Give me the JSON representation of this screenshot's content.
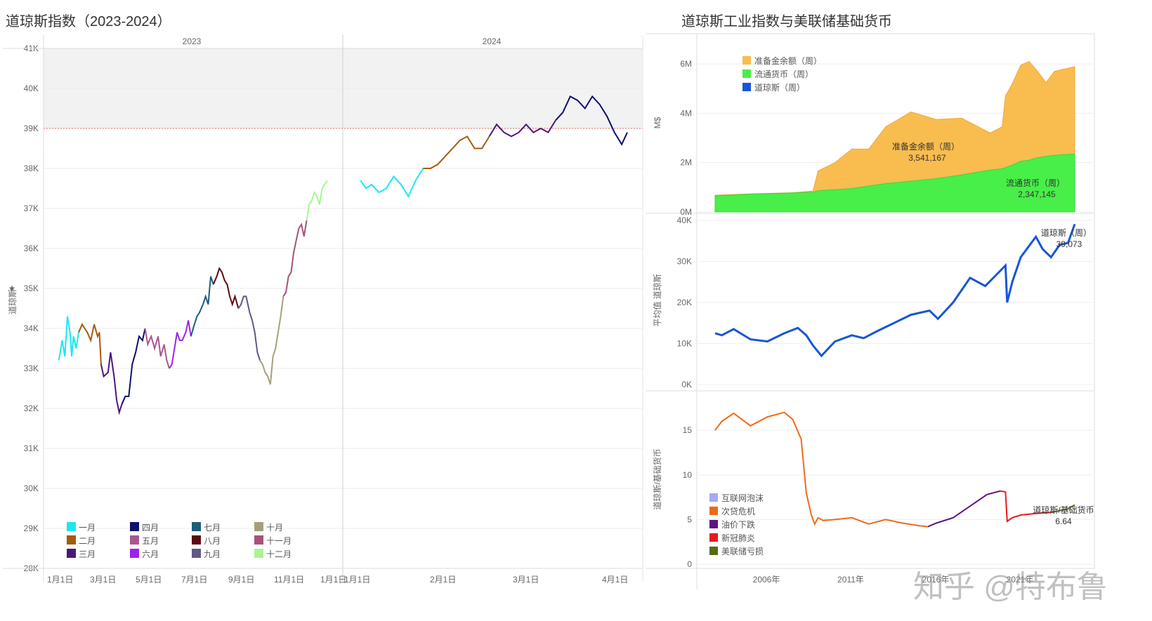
{
  "left_title": "道琼斯指数（2023-2024）",
  "right_title": "道琼斯工业指数与美联储基础货币",
  "watermark": "知乎 @特布鲁",
  "colors": {
    "months": [
      "#19e8f2",
      "#a35b0e",
      "#4b167a",
      "#0f0f6e",
      "#a9578f",
      "#a020f0",
      "#1a5f7a",
      "#5c0a14",
      "#5d5a88",
      "#a5a07c",
      "#a8507a",
      "#a9f58f"
    ],
    "reserve": "#f9bc4f",
    "currency": "#48ef48",
    "dow": "#1556d6",
    "eras": [
      "#a8a8f5",
      "#ee6a1b",
      "#5d1485",
      "#e6191f",
      "#556b12"
    ],
    "refline": "#e06060"
  },
  "chart_data": [
    {
      "type": "line",
      "title": "道琼斯指数（2023-2024）",
      "ylabel": "道琼斯",
      "ylim": [
        28000,
        41000
      ],
      "y_ticks": [
        "28K",
        "29K",
        "30K",
        "31K",
        "32K",
        "33K",
        "34K",
        "35K",
        "36K",
        "37K",
        "38K",
        "39K",
        "40K",
        "41K"
      ],
      "panels": [
        "2023",
        "2024"
      ],
      "x_ticks_2023": [
        "1月1日",
        "3月1日",
        "5月1日",
        "7月1日",
        "9月1日",
        "11月1日",
        "1月1日"
      ],
      "x_ticks_2024": [
        "1月1日",
        "2月1日",
        "3月1日",
        "4月1日"
      ],
      "reference_line": 39000,
      "legend": [
        "一月",
        "二月",
        "三月",
        "四月",
        "五月",
        "六月",
        "七月",
        "八月",
        "九月",
        "十月",
        "十一月",
        "十二月"
      ],
      "series": [
        {
          "name": "2023",
          "values": [
            [
              3,
              33200
            ],
            [
              7,
              33700
            ],
            [
              10,
              33300
            ],
            [
              13,
              34300
            ],
            [
              16,
              33900
            ],
            [
              18,
              33300
            ],
            [
              20,
              33800
            ],
            [
              23,
              33500
            ],
            [
              26,
              33900
            ],
            [
              30,
              34100
            ],
            [
              33,
              34000
            ],
            [
              36,
              33900
            ],
            [
              40,
              33700
            ],
            [
              44,
              34100
            ],
            [
              48,
              33800
            ],
            [
              50,
              33900
            ],
            [
              52,
              33100
            ],
            [
              55,
              32800
            ],
            [
              60,
              32900
            ],
            [
              63,
              33400
            ],
            [
              67,
              32800
            ],
            [
              70,
              32200
            ],
            [
              73,
              31900
            ],
            [
              76,
              32100
            ],
            [
              80,
              32300
            ],
            [
              84,
              32300
            ],
            [
              88,
              33100
            ],
            [
              92,
              33400
            ],
            [
              96,
              33800
            ],
            [
              100,
              33700
            ],
            [
              103,
              34000
            ],
            [
              106,
              33600
            ],
            [
              110,
              33800
            ],
            [
              114,
              33500
            ],
            [
              118,
              33800
            ],
            [
              121,
              33300
            ],
            [
              125,
              33600
            ],
            [
              128,
              33200
            ],
            [
              131,
              33000
            ],
            [
              134,
              33100
            ],
            [
              137,
              33500
            ],
            [
              140,
              33900
            ],
            [
              143,
              33700
            ],
            [
              146,
              33700
            ],
            [
              150,
              33900
            ],
            [
              153,
              34200
            ],
            [
              156,
              33800
            ],
            [
              160,
              34100
            ],
            [
              163,
              34300
            ],
            [
              166,
              34400
            ],
            [
              170,
              34600
            ],
            [
              173,
              34800
            ],
            [
              176,
              34600
            ],
            [
              179,
              35300
            ],
            [
              182,
              35100
            ],
            [
              186,
              35300
            ],
            [
              189,
              35500
            ],
            [
              192,
              35400
            ],
            [
              195,
              35200
            ],
            [
              198,
              35100
            ],
            [
              201,
              34800
            ],
            [
              204,
              34600
            ],
            [
              207,
              34800
            ],
            [
              211,
              34500
            ],
            [
              214,
              34600
            ],
            [
              217,
              34800
            ],
            [
              220,
              34800
            ],
            [
              224,
              34400
            ],
            [
              227,
              34200
            ],
            [
              230,
              33900
            ],
            [
              233,
              33400
            ],
            [
              236,
              33200
            ],
            [
              239,
              33100
            ],
            [
              242,
              32900
            ],
            [
              245,
              32800
            ],
            [
              248,
              32600
            ],
            [
              251,
              33300
            ],
            [
              254,
              33500
            ],
            [
              257,
              33900
            ],
            [
              260,
              34300
            ],
            [
              263,
              34800
            ],
            [
              266,
              34900
            ],
            [
              269,
              35300
            ],
            [
              272,
              35400
            ],
            [
              275,
              35900
            ],
            [
              278,
              36200
            ],
            [
              281,
              36500
            ],
            [
              284,
              36600
            ],
            [
              287,
              36300
            ],
            [
              290,
              36700
            ],
            [
              293,
              37100
            ],
            [
              296,
              37200
            ],
            [
              299,
              37400
            ],
            [
              302,
              37300
            ],
            [
              305,
              37100
            ],
            [
              308,
              37500
            ],
            [
              311,
              37600
            ],
            [
              314,
              37700
            ]
          ]
        },
        {
          "name": "2024",
          "values": [
            [
              2,
              37700
            ],
            [
              5,
              37500
            ],
            [
              8,
              37600
            ],
            [
              12,
              37400
            ],
            [
              16,
              37500
            ],
            [
              20,
              37800
            ],
            [
              24,
              37600
            ],
            [
              28,
              37300
            ],
            [
              32,
              37700
            ],
            [
              36,
              38000
            ],
            [
              40,
              38000
            ],
            [
              44,
              38100
            ],
            [
              48,
              38300
            ],
            [
              52,
              38500
            ],
            [
              56,
              38700
            ],
            [
              60,
              38800
            ],
            [
              64,
              38500
            ],
            [
              68,
              38500
            ],
            [
              72,
              38800
            ],
            [
              76,
              39100
            ],
            [
              80,
              38900
            ],
            [
              84,
              38800
            ],
            [
              88,
              38900
            ],
            [
              92,
              39100
            ],
            [
              96,
              38900
            ],
            [
              100,
              39000
            ],
            [
              104,
              38900
            ],
            [
              108,
              39200
            ],
            [
              112,
              39400
            ],
            [
              116,
              39800
            ],
            [
              120,
              39700
            ],
            [
              124,
              39500
            ],
            [
              128,
              39800
            ],
            [
              132,
              39600
            ],
            [
              136,
              39300
            ],
            [
              140,
              38900
            ],
            [
              144,
              38600
            ],
            [
              147,
              38900
            ]
          ]
        }
      ]
    },
    {
      "type": "area",
      "title": "道琼斯工业指数与美联储基础货币",
      "ylabel": "M$",
      "y_ticks": [
        "0M",
        "2M",
        "4M",
        "6M"
      ],
      "ylim": [
        0,
        6600000
      ],
      "x": [
        2002.9,
        2005,
        2007.5,
        2008.7,
        2009,
        2010,
        2011,
        2012,
        2013,
        2014.5,
        2016,
        2017.5,
        2019.2,
        2019.9,
        2020.1,
        2020.5,
        2021,
        2021.5,
        2022,
        2022.5,
        2023,
        2024.2
      ],
      "series": [
        {
          "name": "准备金余额（周）",
          "values": [
            30000,
            10000,
            10000,
            50000,
            800000,
            1100000,
            1600000,
            1500000,
            2300000,
            2800000,
            2400000,
            2300000,
            1500000,
            1700000,
            2900000,
            3300000,
            3900000,
            4000000,
            3500000,
            3000000,
            3400000,
            3541167
          ]
        },
        {
          "name": "流通货币（周）",
          "values": [
            650000,
            720000,
            770000,
            800000,
            860000,
            900000,
            950000,
            1050000,
            1150000,
            1250000,
            1350000,
            1500000,
            1700000,
            1750000,
            1800000,
            1900000,
            2050000,
            2100000,
            2200000,
            2250000,
            2300000,
            2347145
          ]
        }
      ],
      "legend": [
        "准备金余额（周）",
        "流通货币（周）",
        "道琼斯（周）"
      ],
      "annotations": [
        {
          "label": "准备金余额（周）",
          "value": "3,541,167"
        },
        {
          "label": "流通货币（周）",
          "value": "2,347,145"
        }
      ]
    },
    {
      "type": "line",
      "ylabel": "平均值 道琼斯",
      "y_ticks": [
        "0K",
        "10K",
        "20K",
        "30K",
        "40K"
      ],
      "ylim": [
        0,
        40000
      ],
      "series": [
        {
          "name": "道琼斯（周）",
          "x": [
            2002.9,
            2003.3,
            2004,
            2005,
            2006,
            2007,
            2007.8,
            2008.3,
            2008.7,
            2009.2,
            2010,
            2011,
            2011.7,
            2012.5,
            2013.5,
            2014.5,
            2015.6,
            2016.1,
            2017,
            2018,
            2018.9,
            2019.5,
            2020.1,
            2020.2,
            2020.5,
            2021,
            2021.9,
            2022.3,
            2022.8,
            2023.3,
            2023.8,
            2024.2
          ],
          "values": [
            12500,
            12000,
            13500,
            11000,
            10500,
            12500,
            13800,
            12000,
            9500,
            7000,
            10500,
            12000,
            11300,
            13000,
            15000,
            17000,
            18000,
            16000,
            20000,
            26000,
            24000,
            26500,
            29000,
            20000,
            25000,
            31000,
            36000,
            33000,
            31000,
            34000,
            34500,
            39073
          ]
        }
      ],
      "annotations": [
        {
          "label": "道琼斯（周）",
          "value": "39,073"
        }
      ]
    },
    {
      "type": "line",
      "ylabel": "道琼斯/基础货币",
      "y_ticks": [
        "0",
        "5",
        "10",
        "15"
      ],
      "ylim": [
        0,
        18
      ],
      "legend": [
        "互联网泡沫",
        "次贷危机",
        "油价下跌",
        "新冠肺炎",
        "美联储亏损"
      ],
      "series": [
        {
          "name": "次贷危机",
          "x": [
            2002.9,
            2003.3,
            2004,
            2005,
            2006,
            2007,
            2007.5,
            2008,
            2008.3,
            2008.6,
            2008.8,
            2009,
            2009.3,
            2010,
            2011,
            2012,
            2013,
            2014,
            2015,
            2015.5
          ],
          "values": [
            15,
            16,
            16.9,
            15.5,
            16.5,
            17,
            16.2,
            14,
            8,
            5.5,
            4.5,
            5.2,
            4.9,
            5,
            5.2,
            4.5,
            5.0,
            4.6,
            4.3,
            4.2
          ]
        },
        {
          "name": "油价下跌",
          "x": [
            2015.5,
            2016,
            2017,
            2018,
            2019,
            2019.8
          ],
          "values": [
            4.2,
            4.6,
            5.2,
            6.5,
            7.8,
            8.2
          ]
        },
        {
          "name": "新冠肺炎",
          "x": [
            2019.8,
            2020.1,
            2020.2,
            2020.5,
            2021,
            2022,
            2022.8
          ],
          "values": [
            8.2,
            8.1,
            4.8,
            5.2,
            5.5,
            5.7,
            5.8
          ]
        },
        {
          "name": "美联储亏损",
          "x": [
            2022.8,
            2023.3,
            2023.8,
            2024.2
          ],
          "values": [
            5.8,
            6.0,
            6.2,
            6.64
          ]
        }
      ],
      "x_ticks": [
        "2006年",
        "2011年",
        "2016年",
        "2021年"
      ],
      "annotations": [
        {
          "label": "道琼斯/基础货币",
          "value": "6.64"
        }
      ]
    }
  ]
}
